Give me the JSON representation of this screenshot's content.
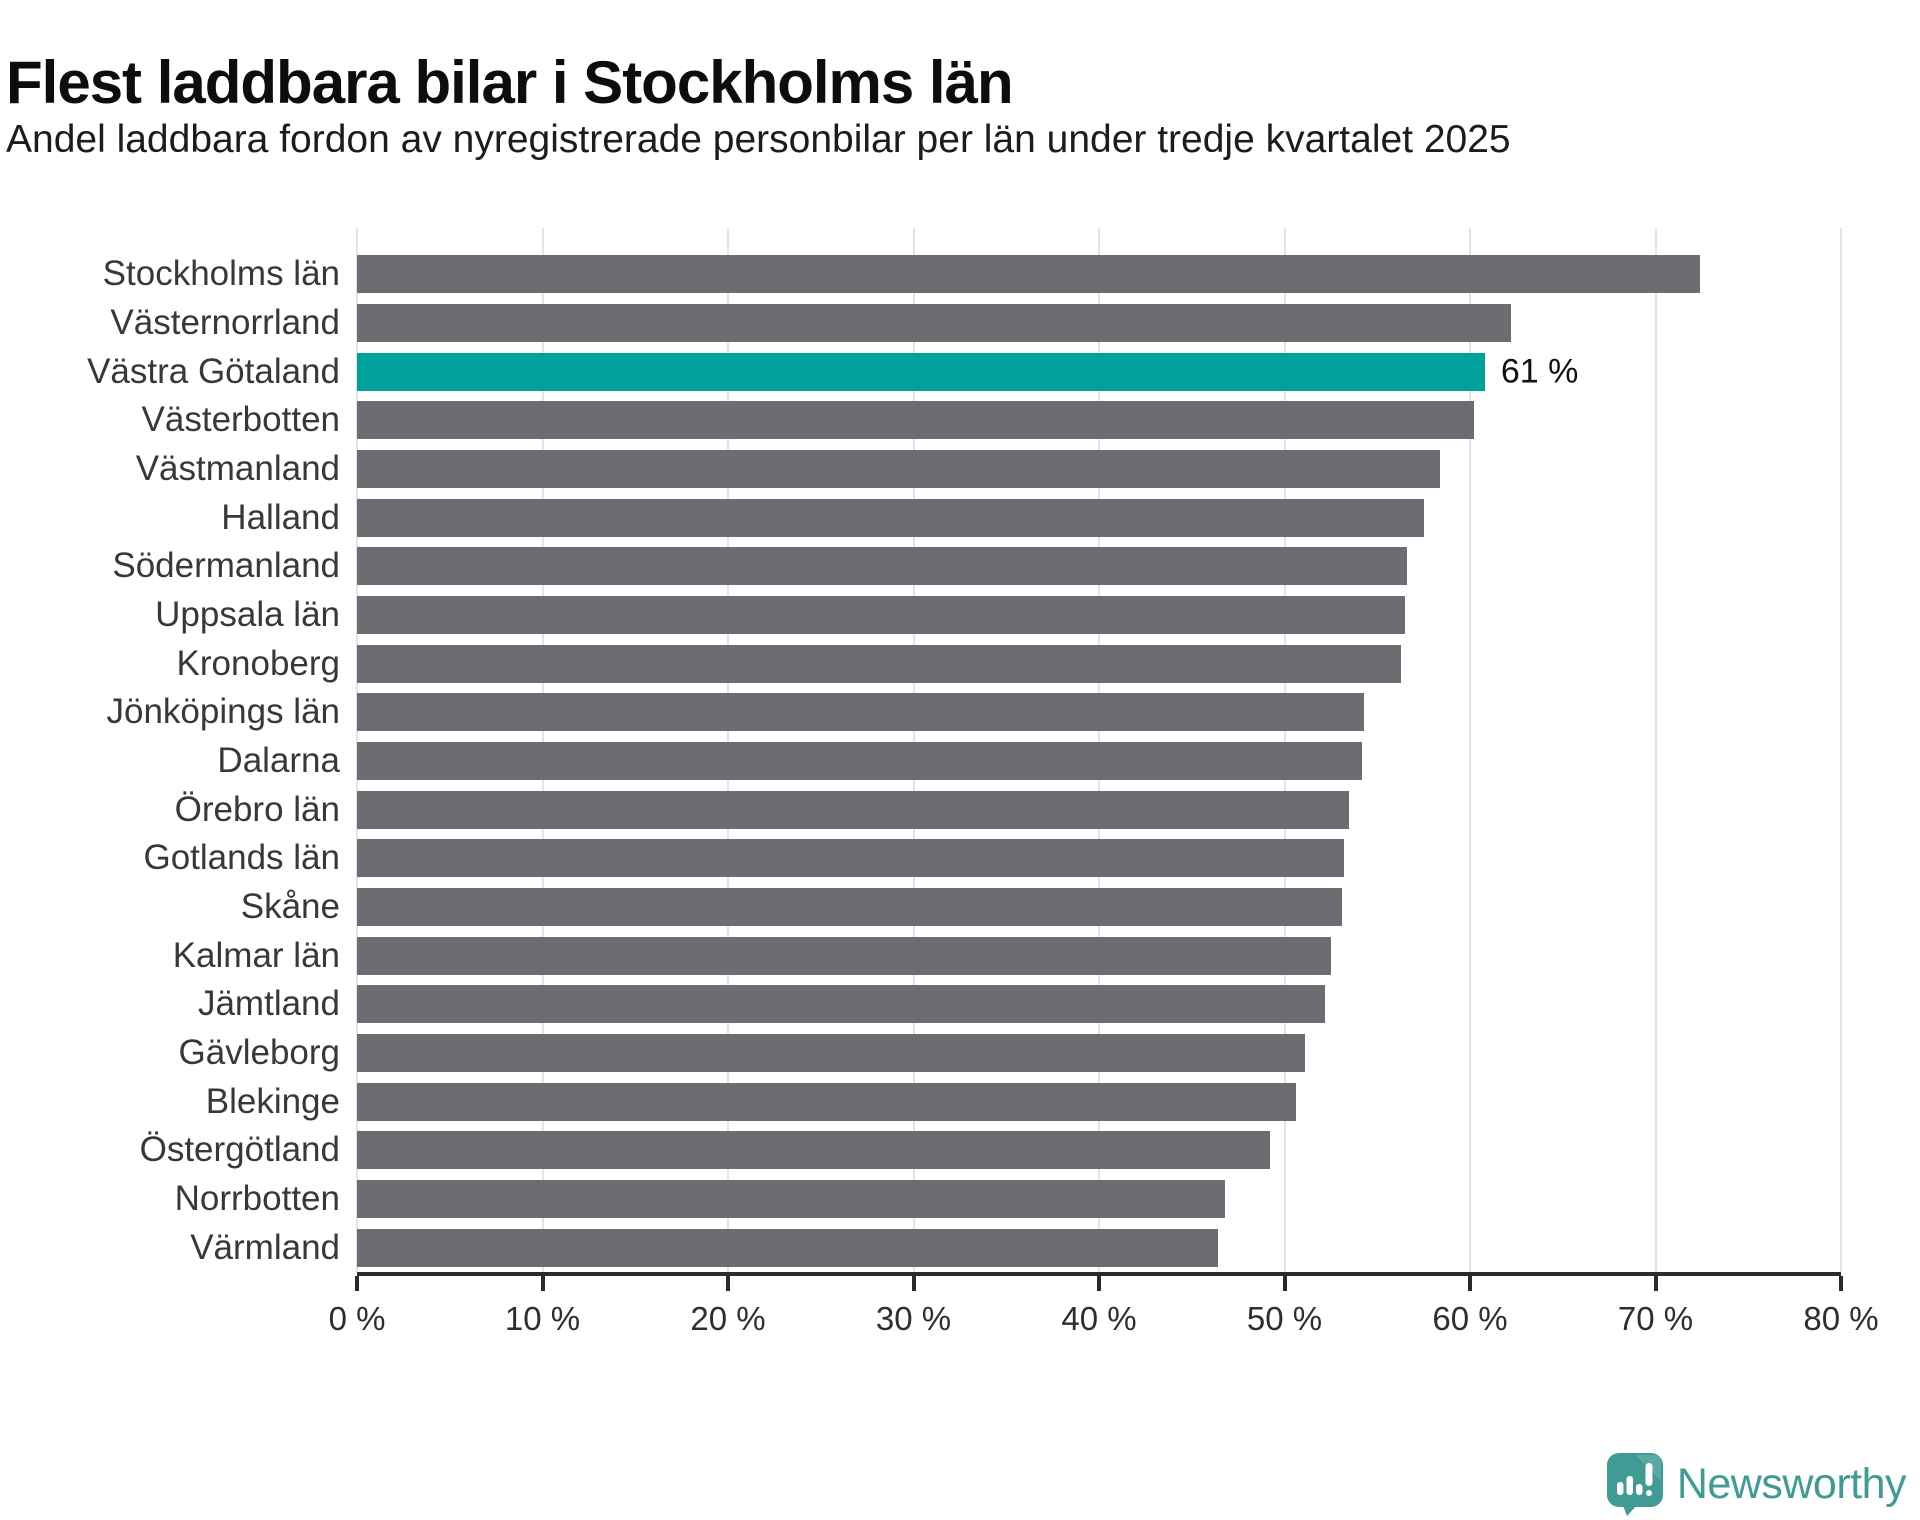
{
  "header": {
    "title": "Flest laddbara bilar i Stockholms län",
    "subtitle": "Andel laddbara fordon av nyregistrerade personbilar per län under tredje kvartalet 2025"
  },
  "colors": {
    "bar": "#6c6c73",
    "highlight": "#00a19a",
    "gridline": "#e4e4e4",
    "axis": "#2b2b2b",
    "title": "#0d0d0d",
    "text": "#38383c",
    "logo": "#3f9b93"
  },
  "chart_data": {
    "type": "bar",
    "orientation": "horizontal",
    "title": "Flest laddbara bilar i Stockholms län",
    "subtitle": "Andel laddbara fordon av nyregistrerade personbilar per län under tredje kvartalet 2025",
    "unit": "%",
    "xlim": [
      0,
      80
    ],
    "grid": true,
    "categories": [
      "Stockholms län",
      "Västernorrland",
      "Västra Götaland",
      "Västerbotten",
      "Västmanland",
      "Halland",
      "Södermanland",
      "Uppsala län",
      "Kronoberg",
      "Jönköpings län",
      "Dalarna",
      "Örebro län",
      "Gotlands län",
      "Skåne",
      "Kalmar län",
      "Jämtland",
      "Gävleborg",
      "Blekinge",
      "Östergötland",
      "Norrbotten",
      "Värmland"
    ],
    "values": [
      72.4,
      62.2,
      60.8,
      60.2,
      58.4,
      57.5,
      56.6,
      56.5,
      56.3,
      54.3,
      54.2,
      53.5,
      53.2,
      53.1,
      52.5,
      52.2,
      51.1,
      50.6,
      49.2,
      46.8,
      46.4
    ],
    "highlight_index": 2,
    "highlight_label": "61 %",
    "x_ticks": [
      {
        "value": 0,
        "label": "0 %"
      },
      {
        "value": 10,
        "label": "10 %"
      },
      {
        "value": 20,
        "label": "20 %"
      },
      {
        "value": 30,
        "label": "30 %"
      },
      {
        "value": 40,
        "label": "40 %"
      },
      {
        "value": 50,
        "label": "50 %"
      },
      {
        "value": 60,
        "label": "60 %"
      },
      {
        "value": 70,
        "label": "70 %"
      },
      {
        "value": 80,
        "label": "80 %"
      }
    ]
  },
  "branding": {
    "logo_text": "Newsworthy"
  }
}
